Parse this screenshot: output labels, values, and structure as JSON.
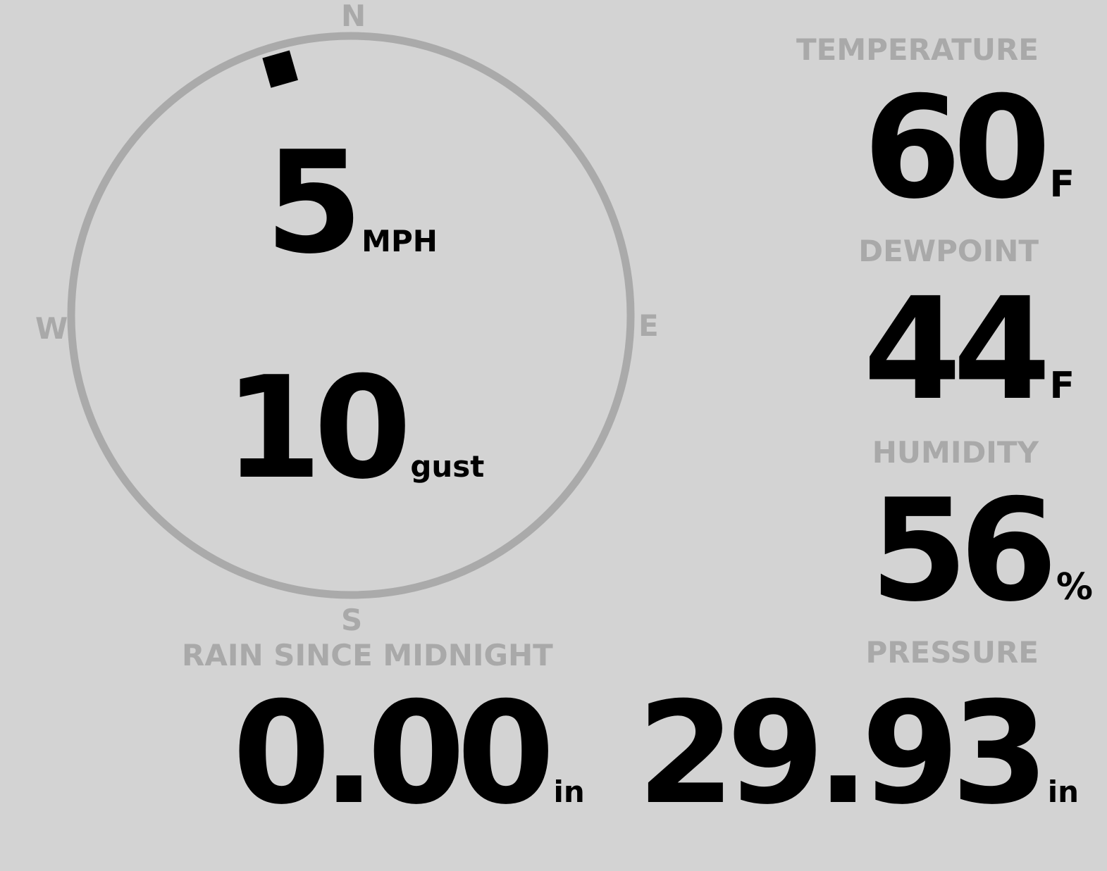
{
  "colors": {
    "background": "#d3d3d3",
    "label": "#a9a9a9",
    "value": "#000000",
    "ring": "#aaaaaa"
  },
  "wind": {
    "compass": {
      "n": "N",
      "e": "E",
      "s": "S",
      "w": "W"
    },
    "direction_deg": 344,
    "speed": "5",
    "speed_unit": "MPH",
    "gust": "10",
    "gust_unit": "gust"
  },
  "temperature": {
    "label": "TEMPERATURE",
    "value": "60",
    "unit": "F"
  },
  "dewpoint": {
    "label": "DEWPOINT",
    "value": "44",
    "unit": "F"
  },
  "humidity": {
    "label": "HUMIDITY",
    "value": "56",
    "unit": "%"
  },
  "rain": {
    "label": "RAIN SINCE MIDNIGHT",
    "value": "0.00",
    "unit": "in"
  },
  "pressure": {
    "label": "PRESSURE",
    "value": "29.93",
    "unit": "in"
  }
}
